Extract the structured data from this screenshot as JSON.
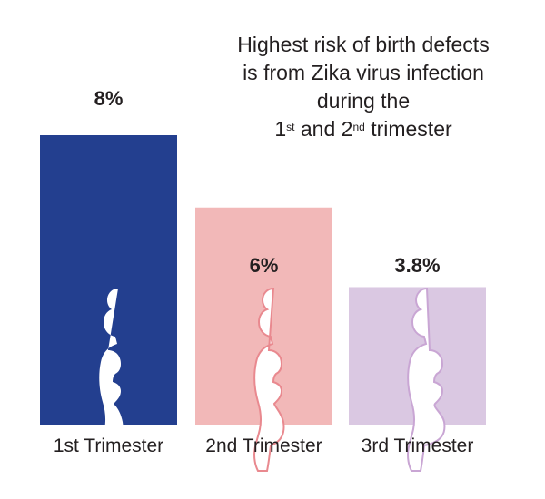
{
  "title": {
    "line1": "Highest risk of birth defects",
    "line2": "is from Zika virus infection",
    "line3": "during the",
    "line4_ord1_num": "1",
    "line4_ord1_sup": "st",
    "line4_and": "and",
    "line4_ord2_num": "2",
    "line4_ord2_sup": "nd",
    "line4_end": "trimester"
  },
  "chart_data": {
    "type": "bar",
    "title": "Highest risk of birth defects is from Zika virus infection during the 1st and 2nd trimester",
    "categories": [
      "1st Trimester",
      "2nd Trimester",
      "3rd Trimester"
    ],
    "values": [
      8,
      6,
      3.8
    ],
    "data_labels": [
      "8%",
      "6%",
      "3.8%"
    ],
    "colors": [
      "#233f8f",
      "#f2b8b8",
      "#dac8e2"
    ],
    "xlabel": "",
    "ylabel": "",
    "ylim": [
      0,
      8
    ],
    "grid": false,
    "icons": [
      "pregnant-woman-silhouette-early",
      "pregnant-woman-silhouette-mid",
      "pregnant-woman-silhouette-late"
    ]
  }
}
